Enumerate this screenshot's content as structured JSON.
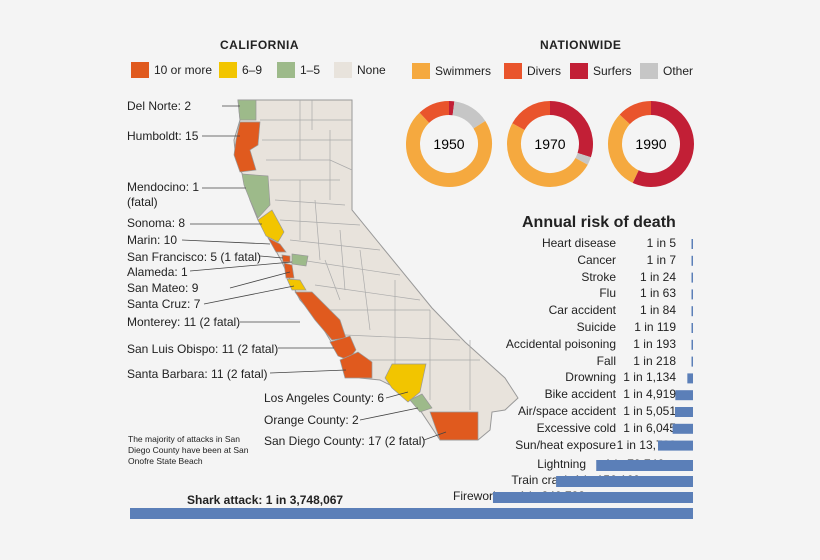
{
  "california": {
    "title": "CALIFORNIA",
    "legend": [
      {
        "label": "10 or more",
        "color": "#e05a1e"
      },
      {
        "label": "6–9",
        "color": "#f2c500"
      },
      {
        "label": "1–5",
        "color": "#9dba8a"
      },
      {
        "label": "None",
        "color": "#e8e3dc"
      }
    ],
    "counties": [
      {
        "label": "Del Norte: 2"
      },
      {
        "label": "Humboldt: 15"
      },
      {
        "label": "Mendocino: 1\n(fatal)"
      },
      {
        "label": "Sonoma: 8"
      },
      {
        "label": "Marin: 10"
      },
      {
        "label": "San Francisco: 5 (1 fatal)"
      },
      {
        "label": "Alameda: 1"
      },
      {
        "label": "San Mateo: 9"
      },
      {
        "label": "Santa Cruz: 7"
      },
      {
        "label": "Monterey: 11 (2 fatal)"
      },
      {
        "label": "San Luis Obispo: 11 (2 fatal)"
      },
      {
        "label": "Santa Barbara: 11 (2 fatal)"
      },
      {
        "label": "Los Angeles County: 6"
      },
      {
        "label": "Orange County: 2"
      },
      {
        "label": "San Diego County: 17 (2 fatal)"
      }
    ],
    "note": "The majority of attacks in San Diego County have been at San Onofre State Beach"
  },
  "nationwide": {
    "title": "NATIONWIDE",
    "legend": [
      {
        "label": "Swimmers",
        "color": "#f5a93f"
      },
      {
        "label": "Divers",
        "color": "#e9542c"
      },
      {
        "label": "Surfers",
        "color": "#c21f36"
      },
      {
        "label": "Other",
        "color": "#c6c6c6"
      }
    ]
  },
  "chart_data": [
    {
      "type": "pie",
      "title": "1950",
      "categories": [
        "Swimmers",
        "Divers",
        "Surfers",
        "Other"
      ],
      "values": [
        72,
        12,
        2,
        14
      ]
    },
    {
      "type": "pie",
      "title": "1970",
      "categories": [
        "Swimmers",
        "Divers",
        "Surfers",
        "Other"
      ],
      "values": [
        50,
        17,
        30,
        3
      ]
    },
    {
      "type": "pie",
      "title": "1990",
      "categories": [
        "Swimmers",
        "Divers",
        "Surfers",
        "Other"
      ],
      "values": [
        30,
        13,
        57,
        0
      ]
    },
    {
      "type": "bar",
      "title": "Annual risk of death",
      "categories": [
        "Heart disease",
        "Cancer",
        "Stroke",
        "Flu",
        "Car accident",
        "Suicide",
        "Accidental poisoning",
        "Fall",
        "Drowning",
        "Bike accident",
        "Air/space accident",
        "Excessive cold",
        "Sun/heat exposure",
        "Lightning",
        "Train crash",
        "Fireworks",
        "Shark attack"
      ],
      "labels": [
        "1 in 5",
        "1 in 7",
        "1 in 24",
        "1 in 63",
        "1 in 84",
        "1 in 119",
        "1 in 193",
        "1 in 218",
        "1 in 1,134",
        "1 in 4,919",
        "1 in 5,051",
        "1 in 6,045",
        "1 in 13,729",
        "1 in 79,746",
        "1 in 156,169",
        "1 in 340,733",
        "1 in 3,748,067"
      ],
      "values": [
        5,
        7,
        24,
        63,
        84,
        119,
        193,
        218,
        1134,
        4919,
        5051,
        6045,
        13729,
        79746,
        156169,
        340733,
        3748067
      ],
      "shark_label": "Shark attack: 1 in 3,748,067"
    }
  ]
}
